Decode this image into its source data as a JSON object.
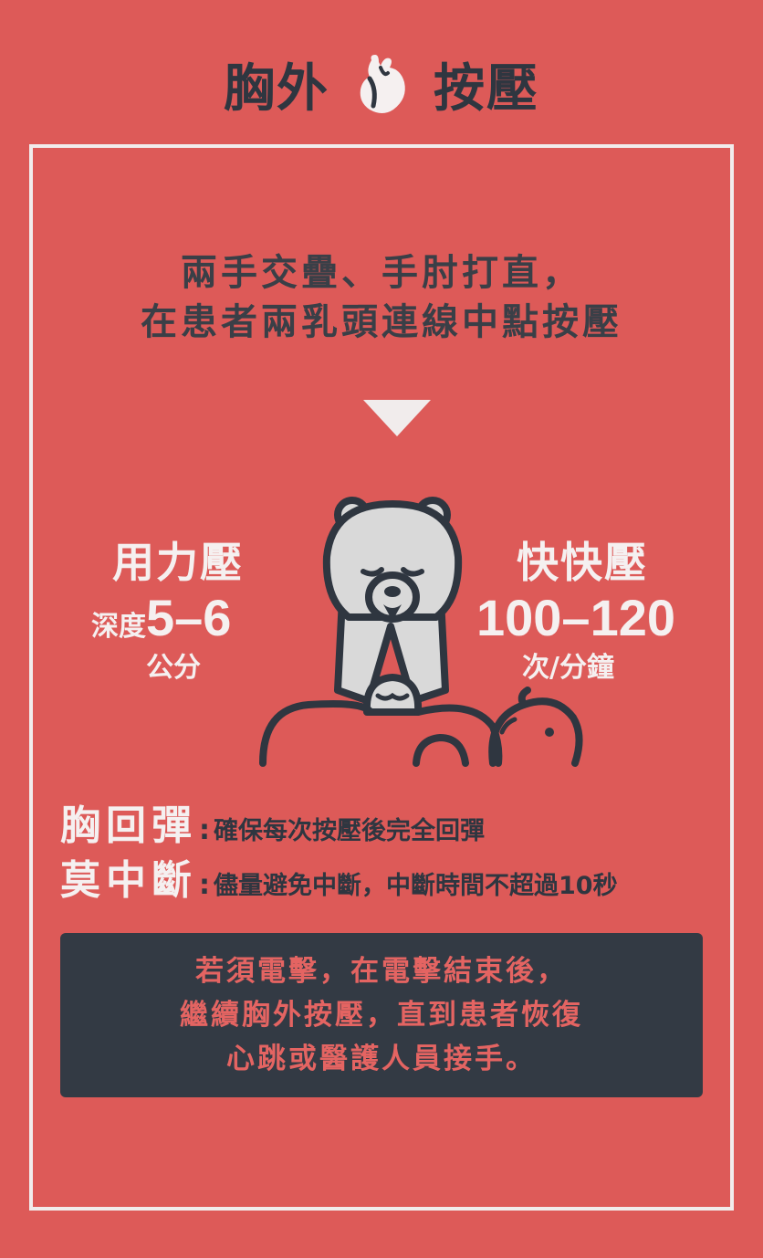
{
  "title": {
    "left": "胸外",
    "right": "按壓",
    "icon": "heart-icon"
  },
  "instruction": {
    "line1": "兩手交疊、手肘打直，",
    "line2": "在患者兩乳頭連線中點按壓"
  },
  "arrow_icon": "down-triangle-icon",
  "illustration": "bear-cpr-illustration",
  "force": {
    "heading": "用力壓",
    "depth_label": "深度",
    "depth_value": "5–6",
    "unit": "公分"
  },
  "speed": {
    "heading": "快快壓",
    "rate_value": "100–120",
    "unit": "次/分鐘"
  },
  "rules": [
    {
      "key": "胸回彈",
      "colon": ":",
      "desc": "確保每次按壓後完全回彈"
    },
    {
      "key": "莫中斷",
      "colon": ":",
      "desc": "儘量避免中斷，中斷時間不超過10秒"
    }
  ],
  "note": {
    "line1": "若須電擊，在電擊結束後，",
    "line2": "繼續胸外按壓，直到患者恢復",
    "line3": "心跳或醫護人員接手。"
  },
  "colors": {
    "background": "#dd5a58",
    "dark": "#2f3640",
    "light": "#f5f0f0",
    "note_text": "#e46462"
  }
}
